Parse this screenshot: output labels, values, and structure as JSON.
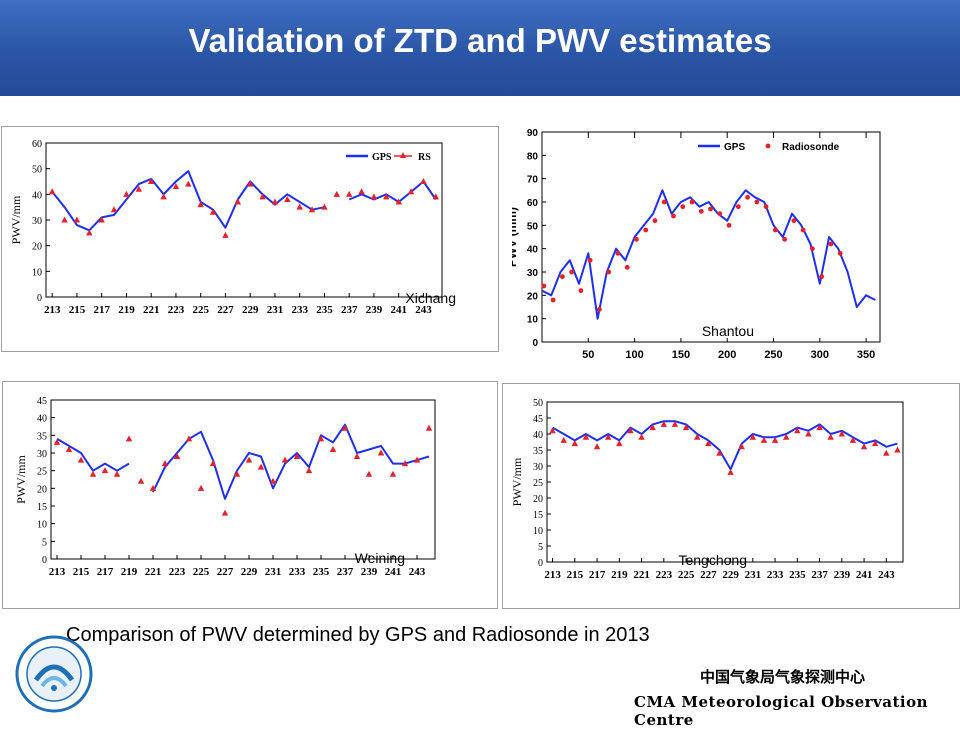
{
  "slide": {
    "title": "Validation of ZTD and PWV estimates",
    "caption": "Comparison of PWV determined by GPS and Radiosonde in 2013",
    "org_cn": "中国气象局气象探测中心",
    "org_en": "CMA Meteorological Observation Centre",
    "logo_icon": "cma-moc-seal-icon",
    "colors": {
      "header": "#2b55a6",
      "gps": "#1f2ff0",
      "radiosonde": "#e8202a"
    }
  },
  "chart_data": [
    {
      "type": "line",
      "station": "Xichang",
      "ylabel": "PWV/mm",
      "ylim": [
        0,
        60
      ],
      "yticks": [
        "0",
        "10",
        "20",
        "30",
        "40",
        "50",
        "60"
      ],
      "xlim": [
        212.5,
        244.5
      ],
      "xticks": [
        "213",
        "215",
        "217",
        "219",
        "221",
        "223",
        "225",
        "227",
        "229",
        "231",
        "233",
        "235",
        "237",
        "239",
        "241",
        "243"
      ],
      "legend": [
        "GPS",
        "RS"
      ],
      "legend_position": "top-right",
      "series": [
        {
          "name": "GPS",
          "x": [
            213,
            214,
            215,
            216,
            217,
            218,
            219,
            220,
            221,
            222,
            223,
            224,
            225,
            226,
            227,
            228,
            229,
            230,
            231,
            232,
            233,
            234,
            235,
            236,
            237,
            238,
            239,
            240,
            241,
            242,
            243,
            244
          ],
          "values": [
            41,
            35,
            28,
            26,
            31,
            32,
            38,
            44,
            46,
            40,
            45,
            49,
            37,
            34,
            27,
            38,
            45,
            40,
            36,
            40,
            37,
            34,
            35,
            null,
            38,
            40,
            38,
            40,
            37,
            41,
            45,
            38
          ]
        },
        {
          "name": "RS",
          "x": [
            213,
            214,
            215,
            216,
            217,
            218,
            219,
            220,
            221,
            222,
            223,
            224,
            225,
            226,
            227,
            228,
            229,
            230,
            231,
            232,
            233,
            234,
            235,
            236,
            237,
            238,
            239,
            240,
            241,
            242,
            243,
            244
          ],
          "values": [
            41,
            30,
            30,
            25,
            30,
            34,
            40,
            42,
            45,
            39,
            43,
            44,
            36,
            33,
            24,
            37,
            44,
            39,
            37,
            38,
            35,
            34,
            35,
            40,
            40,
            41,
            39,
            39,
            37,
            41,
            45,
            39
          ]
        }
      ]
    },
    {
      "type": "line",
      "station": "Shantou",
      "ylabel": "PWV (mm)",
      "ylim": [
        0,
        90
      ],
      "yticks": [
        "0",
        "10",
        "20",
        "30",
        "40",
        "50",
        "60",
        "70",
        "80",
        "90"
      ],
      "xlim": [
        0,
        365
      ],
      "xticks": [
        "50",
        "100",
        "150",
        "200",
        "250",
        "300",
        "350"
      ],
      "legend": [
        "GPS",
        "Radiosonde"
      ],
      "legend_position": "top-right",
      "series": [
        {
          "name": "GPS",
          "x": [
            0,
            10,
            20,
            30,
            40,
            50,
            60,
            70,
            80,
            90,
            100,
            110,
            120,
            130,
            140,
            150,
            160,
            170,
            180,
            190,
            200,
            210,
            220,
            230,
            240,
            250,
            260,
            270,
            280,
            290,
            300,
            310,
            320,
            330,
            340,
            350,
            360
          ],
          "values": [
            22,
            20,
            30,
            35,
            25,
            38,
            10,
            30,
            40,
            35,
            45,
            50,
            55,
            65,
            55,
            60,
            62,
            58,
            60,
            55,
            52,
            60,
            65,
            62,
            60,
            50,
            45,
            55,
            50,
            42,
            25,
            45,
            40,
            30,
            15,
            20,
            18
          ]
        },
        {
          "name": "Radiosonde",
          "x": [
            2,
            12,
            22,
            32,
            42,
            52,
            62,
            72,
            82,
            92,
            102,
            112,
            122,
            132,
            142,
            152,
            162,
            172,
            182,
            192,
            202,
            212,
            222,
            232,
            242,
            252,
            262,
            272,
            282,
            292,
            302,
            312,
            322
          ],
          "values": [
            24,
            18,
            28,
            30,
            22,
            35,
            14,
            30,
            38,
            32,
            44,
            48,
            52,
            60,
            54,
            58,
            60,
            56,
            57,
            55,
            50,
            58,
            62,
            60,
            58,
            48,
            44,
            52,
            48,
            40,
            28,
            42,
            38
          ]
        }
      ]
    },
    {
      "type": "line",
      "station": "Weining",
      "ylabel": "PWV/mm",
      "ylim": [
        0,
        45
      ],
      "yticks": [
        "0",
        "5",
        "10",
        "15",
        "20",
        "25",
        "30",
        "35",
        "40",
        "45"
      ],
      "xlim": [
        212.5,
        244.5
      ],
      "xticks": [
        "213",
        "215",
        "217",
        "219",
        "221",
        "223",
        "225",
        "227",
        "229",
        "231",
        "233",
        "235",
        "237",
        "239",
        "241",
        "243"
      ],
      "series": [
        {
          "name": "GPS",
          "x": [
            213,
            214,
            215,
            216,
            217,
            218,
            219,
            220,
            221,
            222,
            223,
            224,
            225,
            226,
            227,
            228,
            229,
            230,
            231,
            232,
            233,
            234,
            235,
            236,
            237,
            238,
            239,
            240,
            241,
            242,
            243,
            244
          ],
          "values": [
            34,
            32,
            30,
            25,
            27,
            25,
            27,
            null,
            19,
            26,
            30,
            34,
            36,
            28,
            17,
            25,
            30,
            29,
            20,
            27,
            30,
            26,
            35,
            33,
            38,
            30,
            31,
            32,
            27,
            27,
            28,
            29
          ]
        },
        {
          "name": "RS",
          "x": [
            213,
            214,
            215,
            216,
            217,
            218,
            219,
            220,
            221,
            222,
            223,
            224,
            225,
            226,
            227,
            228,
            229,
            230,
            231,
            232,
            233,
            234,
            235,
            236,
            237,
            238,
            239,
            240,
            241,
            242,
            243,
            244
          ],
          "values": [
            33,
            31,
            28,
            24,
            25,
            24,
            34,
            22,
            20,
            27,
            29,
            34,
            20,
            27,
            13,
            24,
            28,
            26,
            22,
            28,
            29,
            25,
            34,
            31,
            37,
            29,
            24,
            30,
            24,
            27,
            28,
            37
          ]
        }
      ]
    },
    {
      "type": "line",
      "station": "Tengchong",
      "ylabel": "PWV/mm",
      "ylim": [
        0,
        50
      ],
      "yticks": [
        "0",
        "5",
        "10",
        "15",
        "20",
        "25",
        "30",
        "35",
        "40",
        "45",
        "50"
      ],
      "xlim": [
        212.5,
        244.5
      ],
      "xticks": [
        "213",
        "215",
        "217",
        "219",
        "221",
        "223",
        "225",
        "227",
        "229",
        "231",
        "233",
        "235",
        "237",
        "239",
        "241",
        "243"
      ],
      "series": [
        {
          "name": "GPS",
          "x": [
            213,
            214,
            215,
            216,
            217,
            218,
            219,
            220,
            221,
            222,
            223,
            224,
            225,
            226,
            227,
            228,
            229,
            230,
            231,
            232,
            233,
            234,
            235,
            236,
            237,
            238,
            239,
            240,
            241,
            242,
            243,
            244
          ],
          "values": [
            42,
            40,
            38,
            40,
            38,
            40,
            38,
            42,
            40,
            43,
            44,
            44,
            43,
            40,
            38,
            35,
            29,
            37,
            40,
            39,
            39,
            40,
            42,
            41,
            43,
            40,
            41,
            39,
            37,
            38,
            36,
            37
          ]
        },
        {
          "name": "RS",
          "x": [
            213,
            214,
            215,
            216,
            217,
            218,
            219,
            220,
            221,
            222,
            223,
            224,
            225,
            226,
            227,
            228,
            229,
            230,
            231,
            232,
            233,
            234,
            235,
            236,
            237,
            238,
            239,
            240,
            241,
            242,
            243,
            244
          ],
          "values": [
            41,
            38,
            37,
            39,
            36,
            39,
            37,
            41,
            39,
            42,
            43,
            43,
            42,
            39,
            37,
            34,
            28,
            36,
            39,
            38,
            38,
            39,
            41,
            40,
            42,
            39,
            40,
            38,
            36,
            37,
            34,
            35
          ]
        }
      ]
    }
  ]
}
